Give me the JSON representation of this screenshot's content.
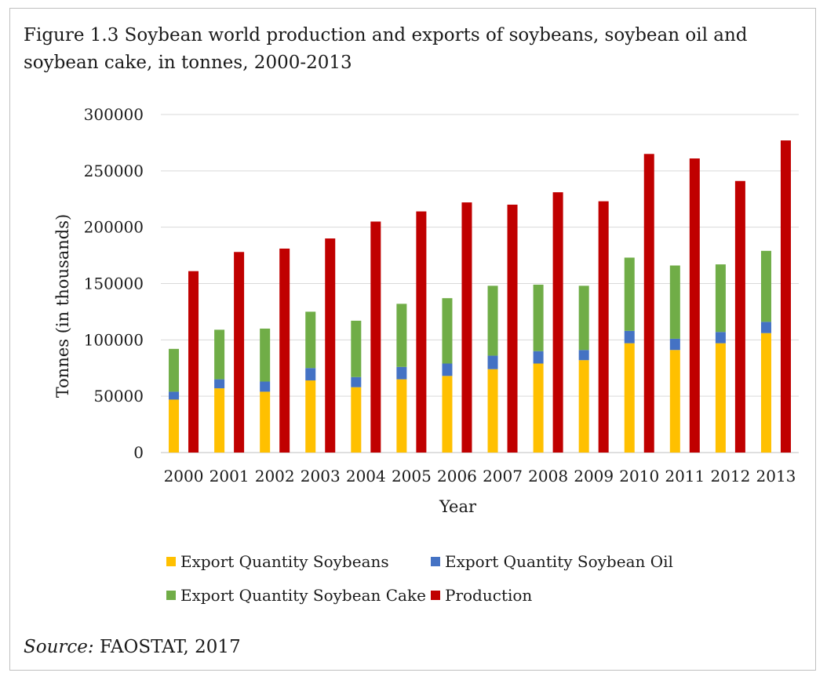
{
  "figure": {
    "title": "Figure 1.3 Soybean world production and exports of soybeans, soybean oil and soybean cake, in tonnes, 2000-2013",
    "source_prefix": "Source:",
    "source_text": " FAOSTAT, 2017"
  },
  "chart_data": {
    "type": "bar",
    "xlabel": "Year",
    "ylabel": "Tonnes  (in thousands)",
    "ylim": [
      0,
      300000
    ],
    "yticks": [
      0,
      50000,
      100000,
      150000,
      200000,
      250000,
      300000
    ],
    "grid": true,
    "legend_position": "bottom",
    "categories": [
      "2000",
      "2001",
      "2002",
      "2003",
      "2004",
      "2005",
      "2006",
      "2007",
      "2008",
      "2009",
      "2010",
      "2011",
      "2012",
      "2013"
    ],
    "series": [
      {
        "name": "Export Quantity Soybeans",
        "color": "#ffc000",
        "stack": "exports",
        "values": [
          47000,
          57000,
          54000,
          64000,
          58000,
          65000,
          68000,
          74000,
          79000,
          82000,
          97000,
          91000,
          97000,
          106000
        ]
      },
      {
        "name": "Export Quantity Soybean Oil",
        "color": "#4472c4",
        "stack": "exports",
        "values": [
          7000,
          8000,
          9000,
          11000,
          9000,
          11000,
          11000,
          12000,
          11000,
          9000,
          11000,
          10000,
          10000,
          10000
        ]
      },
      {
        "name": "Export Quantity Soybean Cake",
        "color": "#70ad47",
        "stack": "exports",
        "values": [
          38000,
          44000,
          47000,
          50000,
          50000,
          56000,
          58000,
          62000,
          59000,
          57000,
          65000,
          65000,
          60000,
          63000
        ]
      },
      {
        "name": "Production",
        "color": "#c00000",
        "stack": "production",
        "values": [
          161000,
          178000,
          181000,
          190000,
          205000,
          214000,
          222000,
          220000,
          231000,
          223000,
          265000,
          261000,
          241000,
          277000
        ]
      }
    ]
  }
}
